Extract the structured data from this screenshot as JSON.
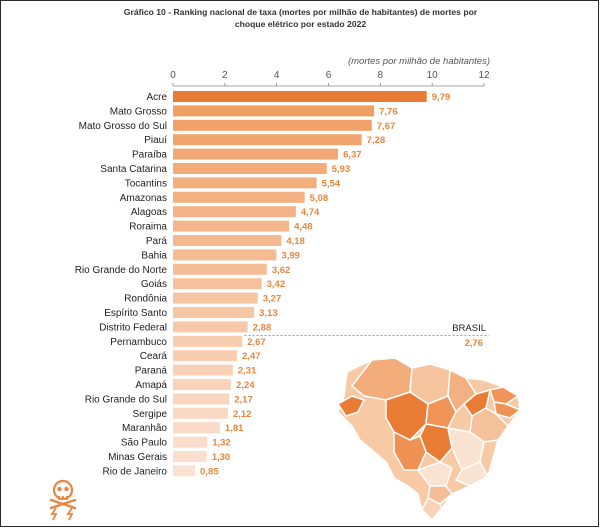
{
  "title_line1": "Gráfico 10 - Ranking nacional de taxa (mortes por milhão de habitantes) de mortes por",
  "title_line2": "choque elétrico por estado 2022",
  "chart_data": {
    "type": "bar",
    "orientation": "horizontal",
    "unit_label": "(mortes por milhão de habitantes)",
    "xlim": [
      0,
      12
    ],
    "xticks": [
      "0",
      "2",
      "4",
      "6",
      "8",
      "10",
      "12"
    ],
    "categories": [
      "Acre",
      "Mato Grosso",
      "Mato Grosso do Sul",
      "Piauí",
      "Paraíba",
      "Santa Catarina",
      "Tocantins",
      "Amazonas",
      "Alagoas",
      "Roraima",
      "Pará",
      "Bahia",
      "Rio Grande do Norte",
      "Goiás",
      "Rondônia",
      "Espírito Santo",
      "Distrito Federal",
      "Pernambuco",
      "Ceará",
      "Paraná",
      "Amapá",
      "Rio Grande do Sul",
      "Sergipe",
      "Maranhão",
      "São Paulo",
      "Minas Gerais",
      "Rio de Janeiro"
    ],
    "values": [
      9.79,
      7.76,
      7.67,
      7.28,
      6.37,
      5.93,
      5.54,
      5.08,
      4.74,
      4.48,
      4.18,
      3.99,
      3.62,
      3.42,
      3.27,
      3.13,
      2.88,
      2.67,
      2.47,
      2.31,
      2.24,
      2.17,
      2.12,
      1.81,
      1.32,
      1.3,
      0.85
    ],
    "value_labels": [
      "9,79",
      "7,76",
      "7,67",
      "7,28",
      "6,37",
      "5,93",
      "5,54",
      "5,08",
      "4,74",
      "4,48",
      "4,18",
      "3,99",
      "3,62",
      "3,42",
      "3,27",
      "3,13",
      "2,88",
      "2,67",
      "2,47",
      "2,31",
      "2,24",
      "2,17",
      "2,12",
      "1,81",
      "1,32",
      "1,30",
      "0,85"
    ],
    "reference": {
      "label": "BRASIL",
      "value": 2.76,
      "value_label": "2,76"
    },
    "colors": {
      "top": "#e97c35",
      "bottom": "#fbe3d3",
      "label": "#e8863f",
      "reference": "#e8863f"
    }
  }
}
